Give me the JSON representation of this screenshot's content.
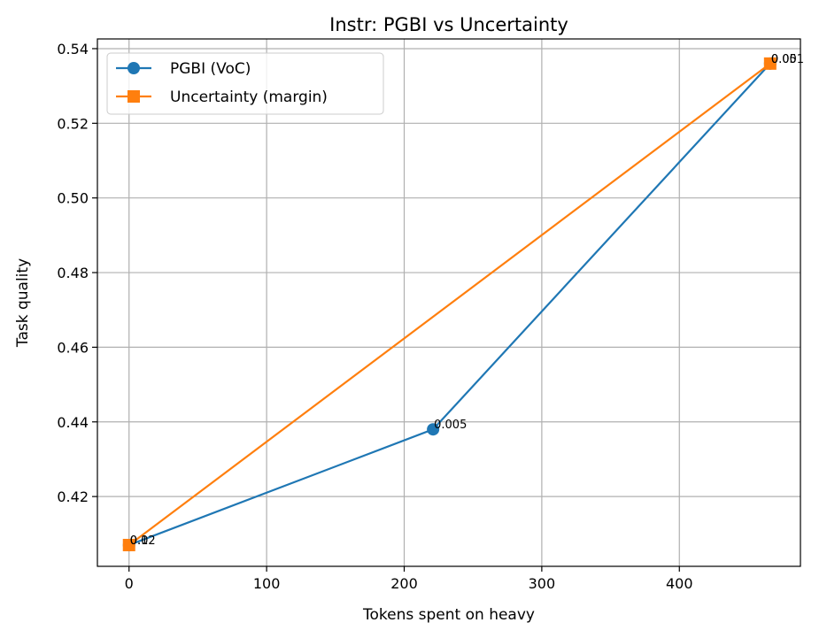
{
  "chart_data": {
    "type": "line",
    "title": "Instr: PGBI vs Uncertainty",
    "xlabel": "Tokens spent on heavy",
    "ylabel": "Task quality",
    "xlim": [
      -23,
      488
    ],
    "ylim": [
      0.4013,
      0.5426
    ],
    "xticks": [
      0,
      100,
      200,
      300,
      400
    ],
    "yticks": [
      0.42,
      0.44,
      0.46,
      0.48,
      0.5,
      0.52,
      0.54
    ],
    "ytick_labels": [
      "0.42",
      "0.44",
      "0.46",
      "0.48",
      "0.50",
      "0.52",
      "0.54"
    ],
    "xtick_labels": [
      "0",
      "100",
      "200",
      "300",
      "400"
    ],
    "grid": true,
    "legend_position": "top-left",
    "series": [
      {
        "name": "PGBI (VoC)",
        "color": "#1f77b4",
        "marker": "circle",
        "x": [
          0,
          221,
          466
        ],
        "y": [
          0.407,
          0.438,
          0.536
        ],
        "annotations": [
          "0.02",
          "0.005",
          "0.001"
        ]
      },
      {
        "name": "Uncertainty (margin)",
        "color": "#ff7f0e",
        "marker": "square",
        "x": [
          0,
          466
        ],
        "y": [
          0.407,
          0.536
        ],
        "annotations": [
          "0.1",
          "0.05"
        ]
      }
    ]
  }
}
